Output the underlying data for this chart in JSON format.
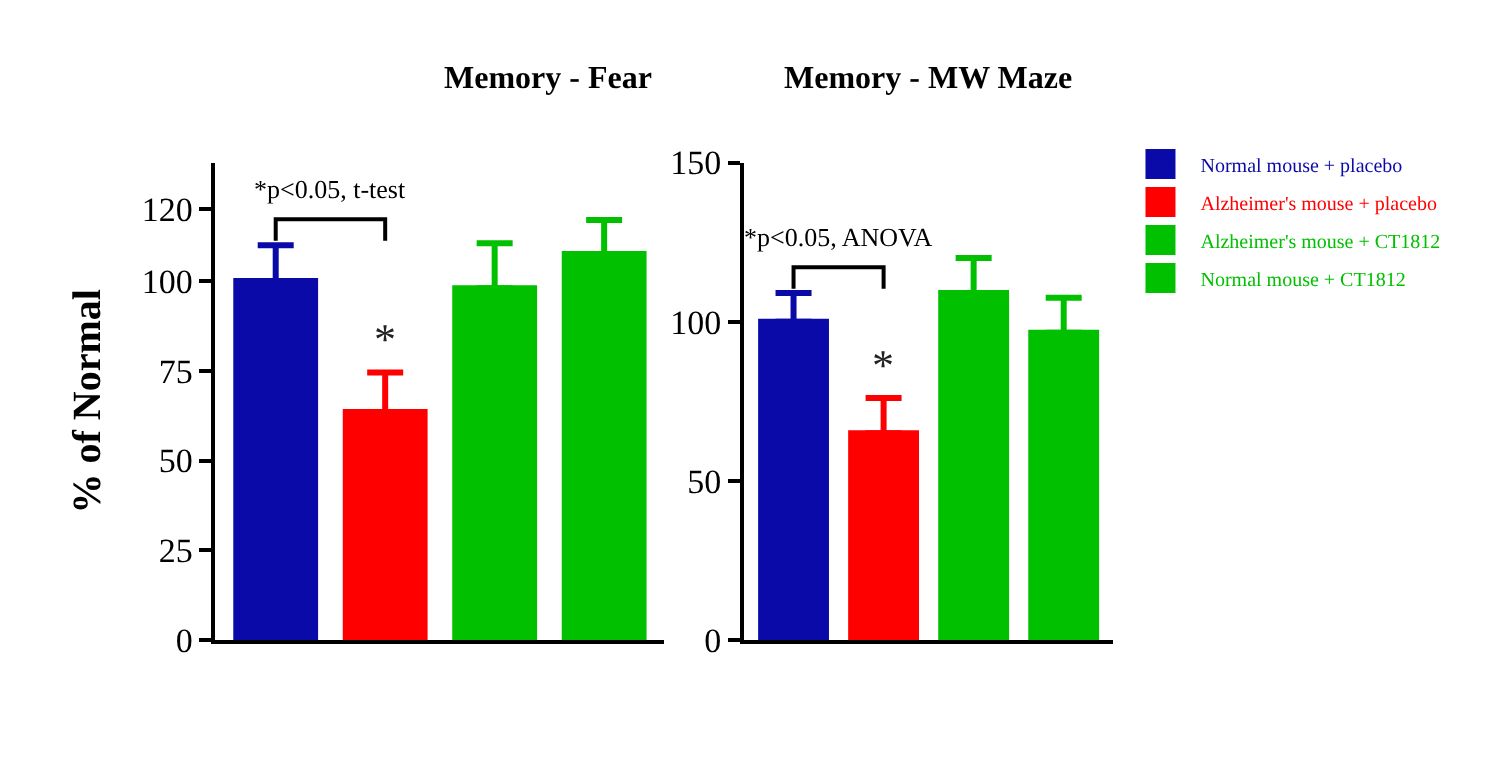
{
  "chart_data": [
    {
      "type": "bar",
      "title": "Memory - Fear",
      "ylabel": "% of Normal",
      "categories": [
        null,
        null,
        null,
        null
      ],
      "series": [
        {
          "color": "#0a0aa8",
          "values": [
            100,
            null,
            null,
            null
          ],
          "errors": [
            10,
            null,
            null,
            null
          ]
        },
        {
          "color": "#ff0000",
          "values": [
            null,
            63.5,
            null,
            null
          ],
          "errors": [
            null,
            11,
            null,
            null
          ],
          "value_labels": [
            null,
            "*",
            null,
            null
          ]
        },
        {
          "color": "#00c000",
          "values": [
            null,
            null,
            98,
            null
          ],
          "errors": [
            null,
            null,
            12.5,
            null
          ]
        },
        {
          "color": "#00c000",
          "values": [
            null,
            null,
            null,
            107.5
          ],
          "errors": [
            null,
            null,
            null,
            9.5
          ]
        }
      ],
      "annotations": [
        "*p<0.05, t-test"
      ],
      "ylim": [
        0,
        133
      ],
      "yticks": [
        0,
        25,
        50,
        75,
        100,
        120
      ]
    },
    {
      "type": "bar",
      "title": "Memory - MW Maze",
      "categories": [
        null,
        null,
        null,
        null
      ],
      "series": [
        {
          "name": "Normal mouse + placebo",
          "color": "#0a0aa8",
          "values": [
            100,
            null,
            null,
            null
          ],
          "errors": [
            9,
            null,
            null,
            null
          ]
        },
        {
          "name": "Alzheimer's mouse + placebo",
          "color": "#ff0000",
          "values": [
            null,
            65,
            null,
            null
          ],
          "errors": [
            null,
            11,
            null,
            null
          ],
          "value_labels": [
            null,
            "*",
            null,
            null
          ]
        },
        {
          "name": "Alzheimer's mouse + CT1812",
          "color": "#00c000",
          "values": [
            null,
            null,
            109,
            null
          ],
          "errors": [
            null,
            null,
            11,
            null
          ]
        },
        {
          "name": "Normal mouse + CT1812",
          "color": "#00c000",
          "values": [
            null,
            null,
            null,
            96.5
          ],
          "errors": [
            null,
            null,
            null,
            11
          ]
        }
      ],
      "annotations": [
        "*p<0.05, ANOVA"
      ],
      "ylim": [
        0,
        150
      ],
      "yticks": [
        0,
        50,
        100,
        150
      ],
      "legend": "right"
    }
  ]
}
